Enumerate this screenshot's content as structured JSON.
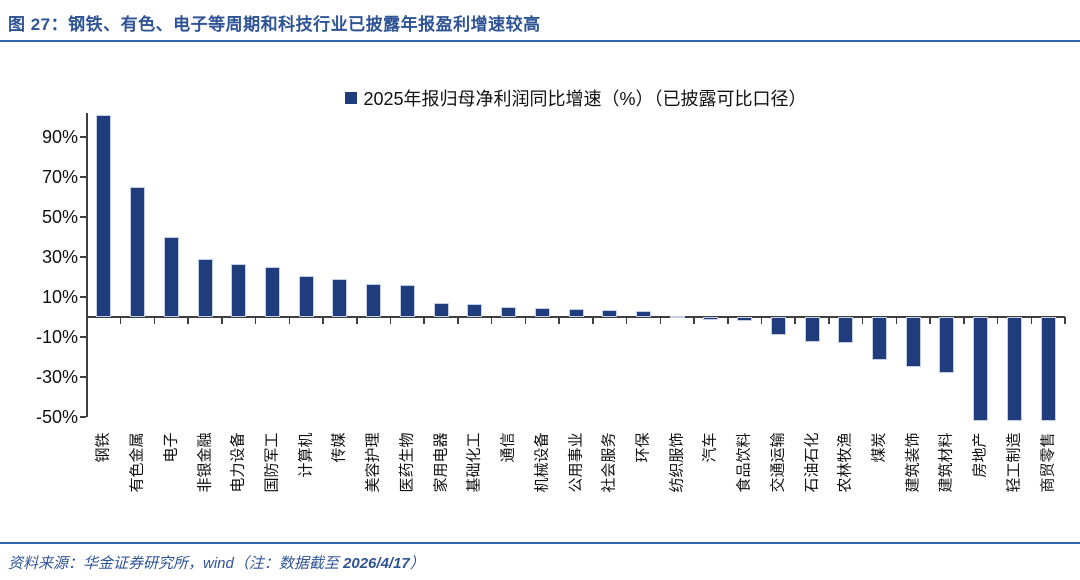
{
  "header": {
    "title": "图 27：钢铁、有色、电子等周期和科技行业已披露年报盈利增速较高"
  },
  "footer": {
    "prefix": "资料来源：华金证券研究所，wind（注：数据截至 ",
    "date": "2026/4/17",
    "suffix": "）"
  },
  "chart_data": {
    "type": "bar",
    "legend": [
      "2025年报归母净利润同比增速（%）（已披露可比口径）"
    ],
    "legend_position": "top-center",
    "categories": [
      "钢铁",
      "有色金属",
      "电子",
      "非银金融",
      "电力设备",
      "国防军工",
      "计算机",
      "传媒",
      "美容护理",
      "医药生物",
      "家用电器",
      "基础化工",
      "通信",
      "机械设备",
      "公用事业",
      "社会服务",
      "环保",
      "纺织服饰",
      "汽车",
      "食品饮料",
      "交通运输",
      "石油石化",
      "农林牧渔",
      "煤炭",
      "建筑装饰",
      "建筑材料",
      "房地产",
      "轻工制造",
      "商贸零售"
    ],
    "values": [
      101,
      65,
      40,
      29,
      26.5,
      25,
      20.5,
      19,
      16.5,
      16,
      7,
      6.5,
      4.8,
      4.4,
      3.9,
      3.5,
      3,
      0.7,
      -1.3,
      -2,
      -9,
      -12.3,
      -13.2,
      -21.5,
      -25,
      -28,
      -52,
      -52,
      -52
    ],
    "value_unit": "%",
    "note": "last three bars clipped at plot floor (values at or below -50%)",
    "yticks": [
      90,
      70,
      50,
      30,
      10,
      -10,
      -30,
      -50
    ],
    "ytick_suffix": "%",
    "ylim": [
      -52,
      102
    ],
    "grid": false,
    "xlabel": "",
    "ylabel": ""
  },
  "colors": {
    "bar": "#1F3C7C",
    "bar_edge": "#C4CFE6",
    "axis": "#3f3f3f",
    "title_blue": "#2F5496",
    "rule_blue": "#3465A8",
    "text": "#111111"
  }
}
